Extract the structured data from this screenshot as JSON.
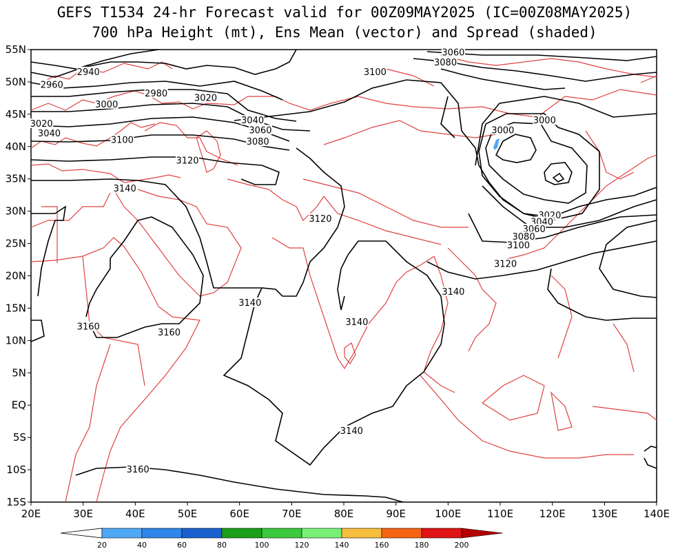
{
  "title": {
    "line1": "GEFS T1534 24-hr Forecast valid for 00Z09MAY2025 (IC=00Z08MAY2025)",
    "line2": "700 hPa Height (mt), Ens Mean (vector) and Spread (shaded)"
  },
  "map": {
    "lon_range": [
      20,
      140
    ],
    "lat_range": [
      -15,
      55
    ],
    "lat_labels": [
      "55N",
      "50N",
      "45N",
      "40N",
      "35N",
      "30N",
      "25N",
      "20N",
      "15N",
      "10N",
      "5N",
      "EQ",
      "5S",
      "10S",
      "15S"
    ],
    "lon_labels": [
      "20E",
      "30E",
      "40E",
      "50E",
      "60E",
      "70E",
      "80E",
      "90E",
      "100E",
      "110E",
      "120E",
      "130E",
      "140E"
    ],
    "contour_labels": [
      {
        "text": "2940",
        "lon": 31,
        "lat": 51.5
      },
      {
        "text": "2960",
        "lon": 24,
        "lat": 49.5
      },
      {
        "text": "2980",
        "lon": 44,
        "lat": 48.2
      },
      {
        "text": "3000",
        "lon": 34.5,
        "lat": 46.5
      },
      {
        "text": "3020",
        "lon": 53.5,
        "lat": 47.5
      },
      {
        "text": "3020",
        "lon": 22,
        "lat": 43.5
      },
      {
        "text": "3040",
        "lon": 23.5,
        "lat": 42
      },
      {
        "text": "3040",
        "lon": 62.5,
        "lat": 44
      },
      {
        "text": "3060",
        "lon": 64,
        "lat": 42.5
      },
      {
        "text": "3080",
        "lon": 63.5,
        "lat": 40.7
      },
      {
        "text": "3100",
        "lon": 37.5,
        "lat": 41
      },
      {
        "text": "3120",
        "lon": 50,
        "lat": 37.8
      },
      {
        "text": "3140",
        "lon": 38,
        "lat": 33.5
      },
      {
        "text": "3100",
        "lon": 86,
        "lat": 51.5
      },
      {
        "text": "3060",
        "lon": 101,
        "lat": 54.5
      },
      {
        "text": "3080",
        "lon": 99.5,
        "lat": 53
      },
      {
        "text": "3000",
        "lon": 110.5,
        "lat": 42.5
      },
      {
        "text": "3000",
        "lon": 118.5,
        "lat": 44
      },
      {
        "text": "3020",
        "lon": 119.5,
        "lat": 29.3
      },
      {
        "text": "3040",
        "lon": 118,
        "lat": 28.3
      },
      {
        "text": "3060",
        "lon": 116.5,
        "lat": 27.2
      },
      {
        "text": "3080",
        "lon": 114.5,
        "lat": 26
      },
      {
        "text": "3100",
        "lon": 113.5,
        "lat": 24.7
      },
      {
        "text": "3120",
        "lon": 75.5,
        "lat": 28.8
      },
      {
        "text": "3120",
        "lon": 111,
        "lat": 21.8
      },
      {
        "text": "3140",
        "lon": 62,
        "lat": 15.8
      },
      {
        "text": "3140",
        "lon": 101,
        "lat": 17.5
      },
      {
        "text": "3140",
        "lon": 82.5,
        "lat": 12.8
      },
      {
        "text": "3140",
        "lon": 81.5,
        "lat": -4
      },
      {
        "text": "3160",
        "lon": 31,
        "lat": 12.1
      },
      {
        "text": "3160",
        "lon": 46.5,
        "lat": 11.2
      },
      {
        "text": "3160",
        "lon": 40.5,
        "lat": -10
      }
    ]
  },
  "colorbar": {
    "labels": [
      "20",
      "40",
      "60",
      "80",
      "100",
      "120",
      "140",
      "160",
      "180",
      "200"
    ],
    "colors": [
      "#4fa8f5",
      "#2e86e8",
      "#1a60cf",
      "#1aa01a",
      "#3cc83c",
      "#78f078",
      "#f5be3c",
      "#f56414",
      "#e01414",
      "#b40000"
    ]
  }
}
